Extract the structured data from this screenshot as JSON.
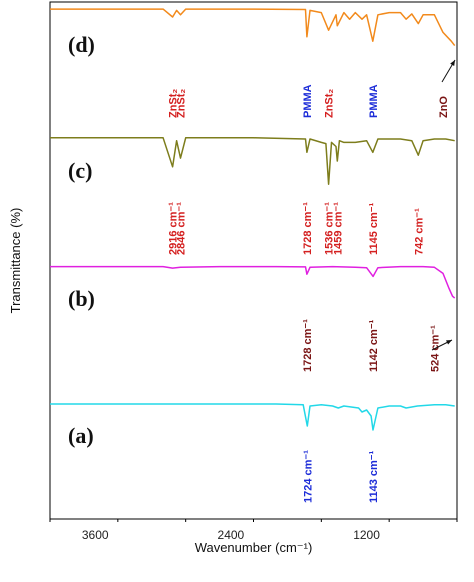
{
  "chart_data": {
    "type": "line",
    "title": "",
    "xlabel": "Wavenumber (cm⁻¹)",
    "ylabel": "Transmittance (%)",
    "xlim": [
      4000,
      400
    ],
    "x_reversed": true,
    "x_ticks": [
      3600,
      2400,
      1200
    ],
    "series": [
      {
        "panel": "(d)",
        "color": "#f28a1c",
        "points": [
          [
            4000,
            93
          ],
          [
            3500,
            93
          ],
          [
            3000,
            93
          ],
          [
            2916,
            75
          ],
          [
            2880,
            90
          ],
          [
            2846,
            80
          ],
          [
            2800,
            93
          ],
          [
            2200,
            93
          ],
          [
            1740,
            92
          ],
          [
            1728,
            30
          ],
          [
            1700,
            90
          ],
          [
            1600,
            85
          ],
          [
            1536,
            45
          ],
          [
            1470,
            80
          ],
          [
            1459,
            55
          ],
          [
            1400,
            85
          ],
          [
            1350,
            70
          ],
          [
            1300,
            85
          ],
          [
            1240,
            70
          ],
          [
            1200,
            80
          ],
          [
            1145,
            20
          ],
          [
            1100,
            80
          ],
          [
            1000,
            85
          ],
          [
            900,
            85
          ],
          [
            850,
            70
          ],
          [
            800,
            82
          ],
          [
            742,
            60
          ],
          [
            700,
            80
          ],
          [
            600,
            80
          ],
          [
            524,
            40
          ],
          [
            450,
            20
          ],
          [
            420,
            10
          ]
        ],
        "annotations": [
          {
            "x": 2916,
            "text": "ZnSt₂",
            "color": "#d42020"
          },
          {
            "x": 2846,
            "text": "ZnSt₂",
            "color": "#d42020"
          },
          {
            "x": 1728,
            "text": "PMMA",
            "color": "#1c2cd8"
          },
          {
            "x": 1536,
            "text": "ZnSt₂",
            "color": "#d42020"
          },
          {
            "x": 1145,
            "text": "PMMA",
            "color": "#1c2cd8"
          },
          {
            "x": 524,
            "text": "ZnO",
            "color": "#7a1414"
          }
        ]
      },
      {
        "panel": "(c)",
        "color": "#7d7d1c",
        "points": [
          [
            4000,
            90
          ],
          [
            3500,
            90
          ],
          [
            3000,
            90
          ],
          [
            2916,
            40
          ],
          [
            2880,
            85
          ],
          [
            2846,
            55
          ],
          [
            2800,
            90
          ],
          [
            2200,
            90
          ],
          [
            1740,
            88
          ],
          [
            1728,
            65
          ],
          [
            1700,
            88
          ],
          [
            1600,
            82
          ],
          [
            1560,
            80
          ],
          [
            1536,
            10
          ],
          [
            1510,
            82
          ],
          [
            1470,
            75
          ],
          [
            1459,
            50
          ],
          [
            1440,
            85
          ],
          [
            1400,
            82
          ],
          [
            1300,
            82
          ],
          [
            1200,
            85
          ],
          [
            1145,
            65
          ],
          [
            1100,
            88
          ],
          [
            900,
            88
          ],
          [
            800,
            85
          ],
          [
            742,
            60
          ],
          [
            700,
            85
          ],
          [
            600,
            88
          ],
          [
            500,
            88
          ],
          [
            420,
            85
          ]
        ],
        "annotations": [
          {
            "x": 2916,
            "text": "2916 cm⁻¹",
            "color": "#d42020"
          },
          {
            "x": 2846,
            "text": "2846 cm⁻¹",
            "color": "#d42020"
          },
          {
            "x": 1728,
            "text": "1728 cm⁻¹",
            "color": "#d42020"
          },
          {
            "x": 1536,
            "text": "1536 cm⁻¹",
            "color": "#d42020"
          },
          {
            "x": 1459,
            "text": "1459 cm⁻¹",
            "color": "#d42020"
          },
          {
            "x": 1145,
            "text": "1145 cm⁻¹",
            "color": "#d42020"
          },
          {
            "x": 742,
            "text": "742 cm⁻¹",
            "color": "#d42020"
          }
        ]
      },
      {
        "panel": "(b)",
        "color": "#e020e0",
        "points": [
          [
            4000,
            88
          ],
          [
            3600,
            88
          ],
          [
            3000,
            88
          ],
          [
            2916,
            84
          ],
          [
            2846,
            86
          ],
          [
            2500,
            88
          ],
          [
            2000,
            88
          ],
          [
            1740,
            87
          ],
          [
            1728,
            68
          ],
          [
            1700,
            86
          ],
          [
            1500,
            88
          ],
          [
            1300,
            86
          ],
          [
            1200,
            85
          ],
          [
            1142,
            62
          ],
          [
            1100,
            85
          ],
          [
            900,
            88
          ],
          [
            700,
            88
          ],
          [
            600,
            86
          ],
          [
            524,
            70
          ],
          [
            470,
            30
          ],
          [
            440,
            10
          ],
          [
            420,
            5
          ]
        ],
        "annotations": [
          {
            "x": 1728,
            "text": "1728 cm⁻¹",
            "color": "#7a1414"
          },
          {
            "x": 1142,
            "text": "1142 cm⁻¹",
            "color": "#7a1414"
          },
          {
            "x": 600,
            "text": "524 cm⁻¹",
            "color": "#7a1414"
          }
        ]
      },
      {
        "panel": "(a)",
        "color": "#22d8e8",
        "points": [
          [
            4000,
            90
          ],
          [
            3500,
            90
          ],
          [
            3000,
            90
          ],
          [
            2500,
            90
          ],
          [
            2000,
            90
          ],
          [
            1760,
            88
          ],
          [
            1724,
            35
          ],
          [
            1700,
            85
          ],
          [
            1600,
            88
          ],
          [
            1500,
            85
          ],
          [
            1450,
            80
          ],
          [
            1400,
            85
          ],
          [
            1270,
            80
          ],
          [
            1240,
            70
          ],
          [
            1200,
            75
          ],
          [
            1160,
            60
          ],
          [
            1143,
            25
          ],
          [
            1100,
            80
          ],
          [
            1000,
            85
          ],
          [
            900,
            85
          ],
          [
            850,
            80
          ],
          [
            750,
            85
          ],
          [
            600,
            88
          ],
          [
            500,
            88
          ],
          [
            420,
            85
          ]
        ],
        "annotations": [
          {
            "x": 1724,
            "text": "1724 cm⁻¹",
            "color": "#1c2cd8"
          },
          {
            "x": 1143,
            "text": "1143 cm⁻¹",
            "color": "#1c2cd8"
          }
        ]
      }
    ]
  }
}
